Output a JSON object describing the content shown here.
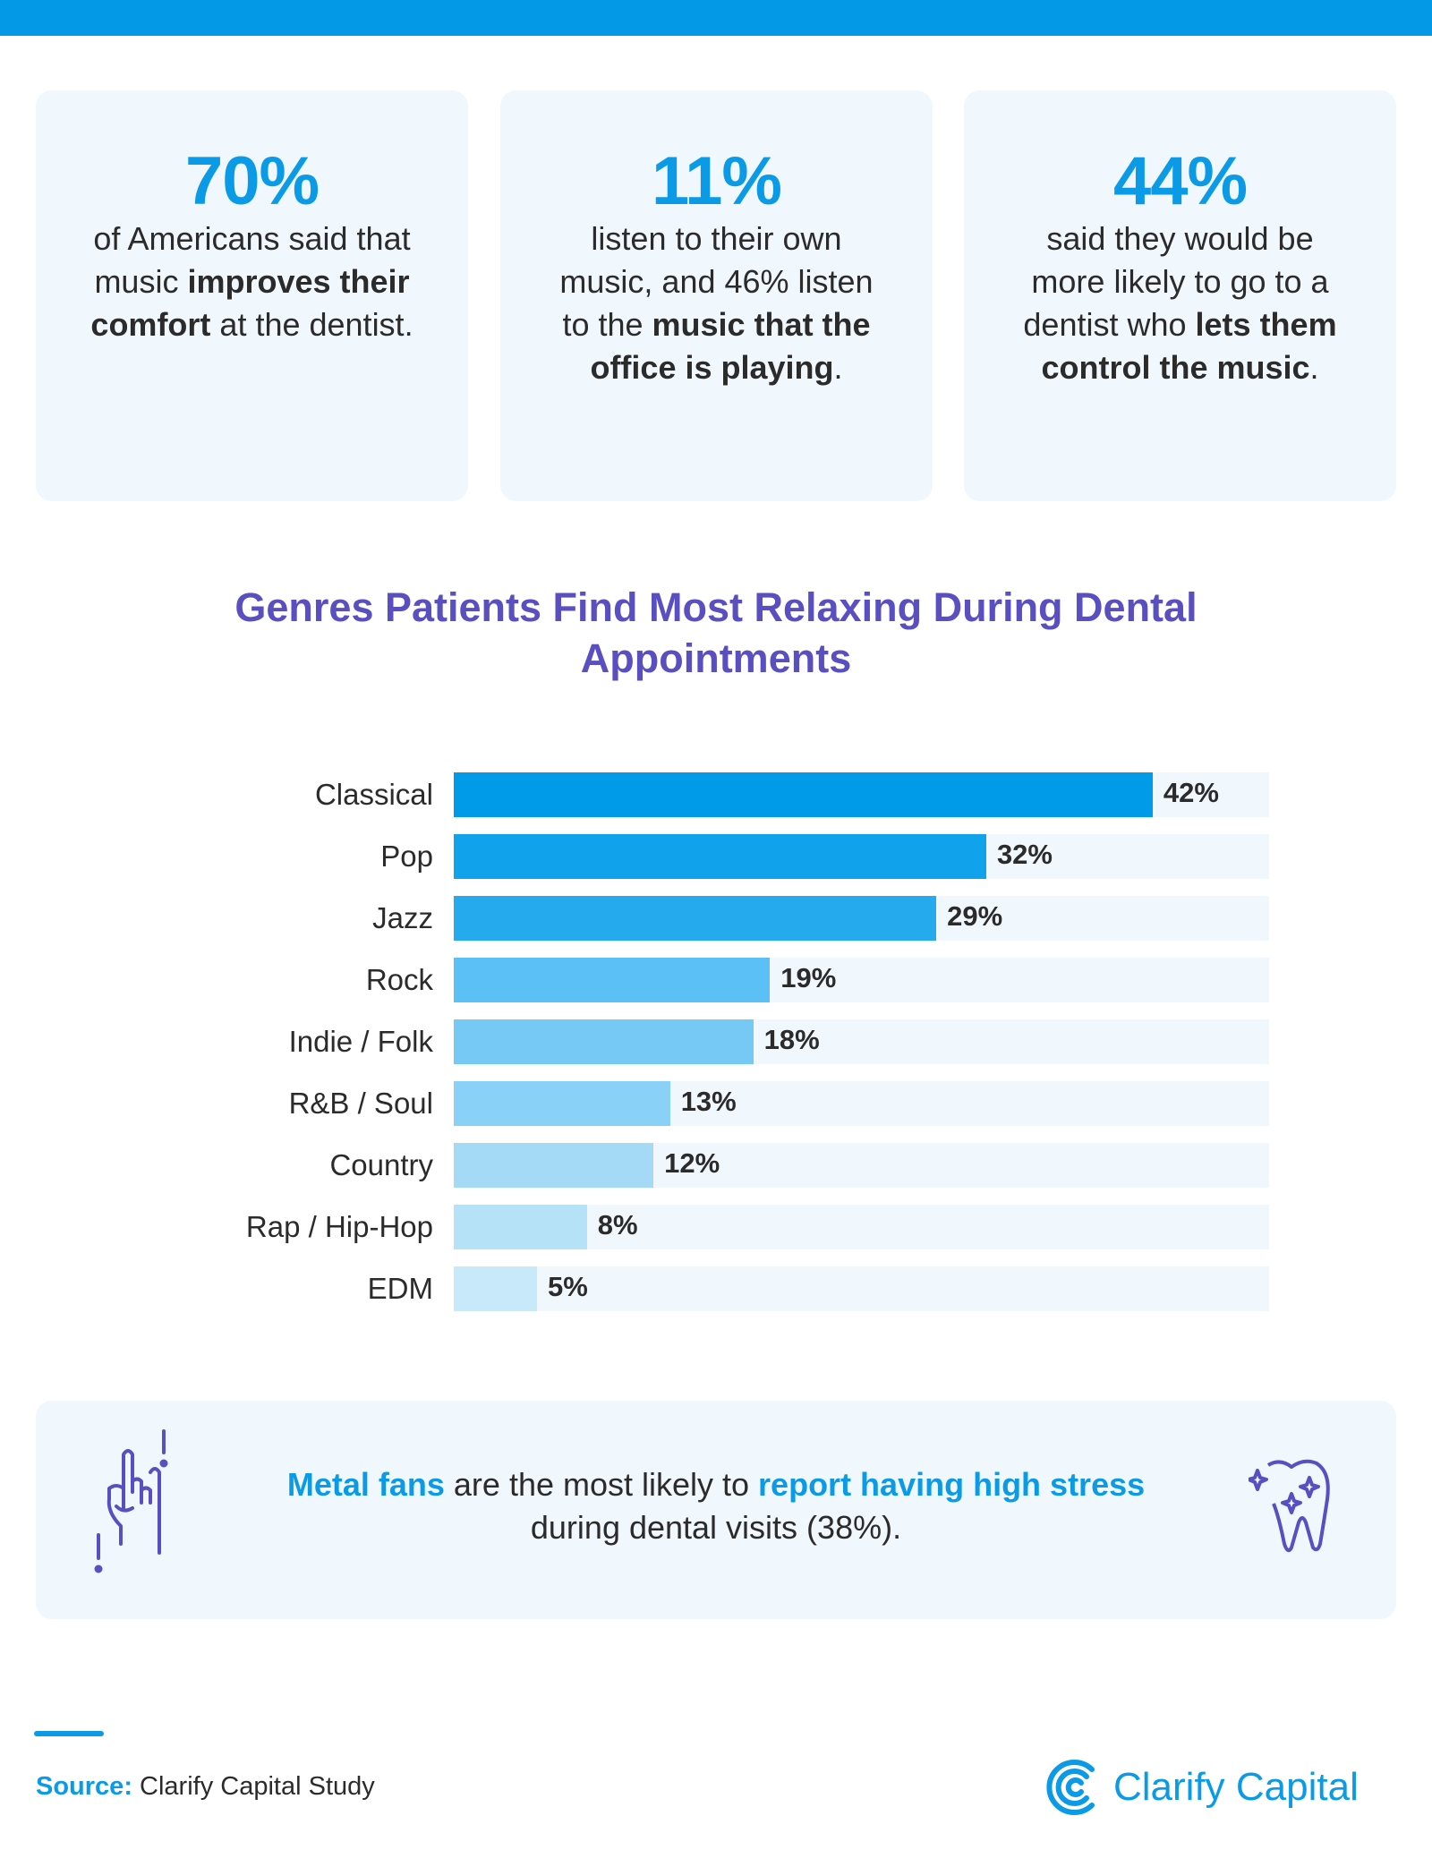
{
  "cards": [
    {
      "big": "70%",
      "parts": [
        {
          "t": "of Americans said that music ",
          "b": false
        },
        {
          "t": "improves their comfort",
          "b": true
        },
        {
          "t": " at the dentist.",
          "b": false
        }
      ]
    },
    {
      "big": "11%",
      "parts": [
        {
          "t": "listen to their own music, and 46% listen to the ",
          "b": false
        },
        {
          "t": "music that the office is playing",
          "b": true
        },
        {
          "t": ".",
          "b": false
        }
      ]
    },
    {
      "big": "44%",
      "parts": [
        {
          "t": "said they would be more likely to go to a dentist who ",
          "b": false
        },
        {
          "t": "lets them control the music",
          "b": true
        },
        {
          "t": ".",
          "b": false
        }
      ]
    }
  ],
  "chart_data": {
    "type": "bar",
    "orientation": "horizontal",
    "title": "Genres Patients Find Most Relaxing During Dental Appointments",
    "categories": [
      "Classical",
      "Pop",
      "Jazz",
      "Rock",
      "Indie / Folk",
      "R&B / Soul",
      "Country",
      "Rap / Hip-Hop",
      "EDM"
    ],
    "values": [
      42,
      32,
      29,
      19,
      18,
      13,
      12,
      8,
      5
    ],
    "labels": [
      "42%",
      "32%",
      "29%",
      "19%",
      "18%",
      "13%",
      "12%",
      "8%",
      "5%"
    ],
    "colors": [
      "#009be8",
      "#10a3ec",
      "#25aaed",
      "#5bc0f5",
      "#76c9f5",
      "#8ad1f7",
      "#a5daf6",
      "#b6e2f8",
      "#c8e9fa"
    ],
    "track_color": "#f1f8fd",
    "xlim": [
      0,
      49
    ],
    "grid": false,
    "legend": "none"
  },
  "callout": {
    "hl1": "Metal fans",
    "mid": " are the most likely to ",
    "hl2": "report having high stress",
    "end": " during dental visits (38%)."
  },
  "footer": {
    "source_label": "Source:",
    "source_text": " Clarify Capital Study",
    "logo_text": "Clarify Capital"
  },
  "colors": {
    "accent": "#0b9be6",
    "title": "#5a4fc0",
    "icon": "#5a4fc0"
  }
}
